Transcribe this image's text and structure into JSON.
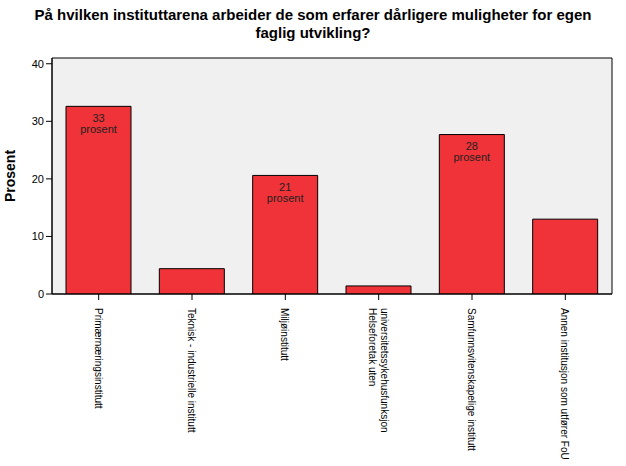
{
  "chart_data": {
    "type": "bar",
    "title": "På hvilken instituttarena arbeider de som erfarer dårligere muligheter for egen faglig utvikling?",
    "y_label": "Prosent",
    "categories": [
      "Primærnæringsinstitutt",
      "Teknisk - industrielle institutt",
      "Miljøinstitutt",
      "Helseforetak uten universitetssykehusfunksjon",
      "Samfunnsvitenskapelige institutt",
      "Annen institusjon som utfører FoU"
    ],
    "values": [
      32.6,
      4.4,
      20.6,
      1.4,
      27.7,
      13.0
    ],
    "value_labels": [
      "33 prosent",
      null,
      "21 prosent",
      null,
      "28 prosent",
      null
    ],
    "color": "#ef3338",
    "ylim": [
      0,
      41
    ],
    "yticks": [
      0,
      10,
      20,
      30,
      40
    ],
    "grid": false,
    "data_labels": true
  }
}
